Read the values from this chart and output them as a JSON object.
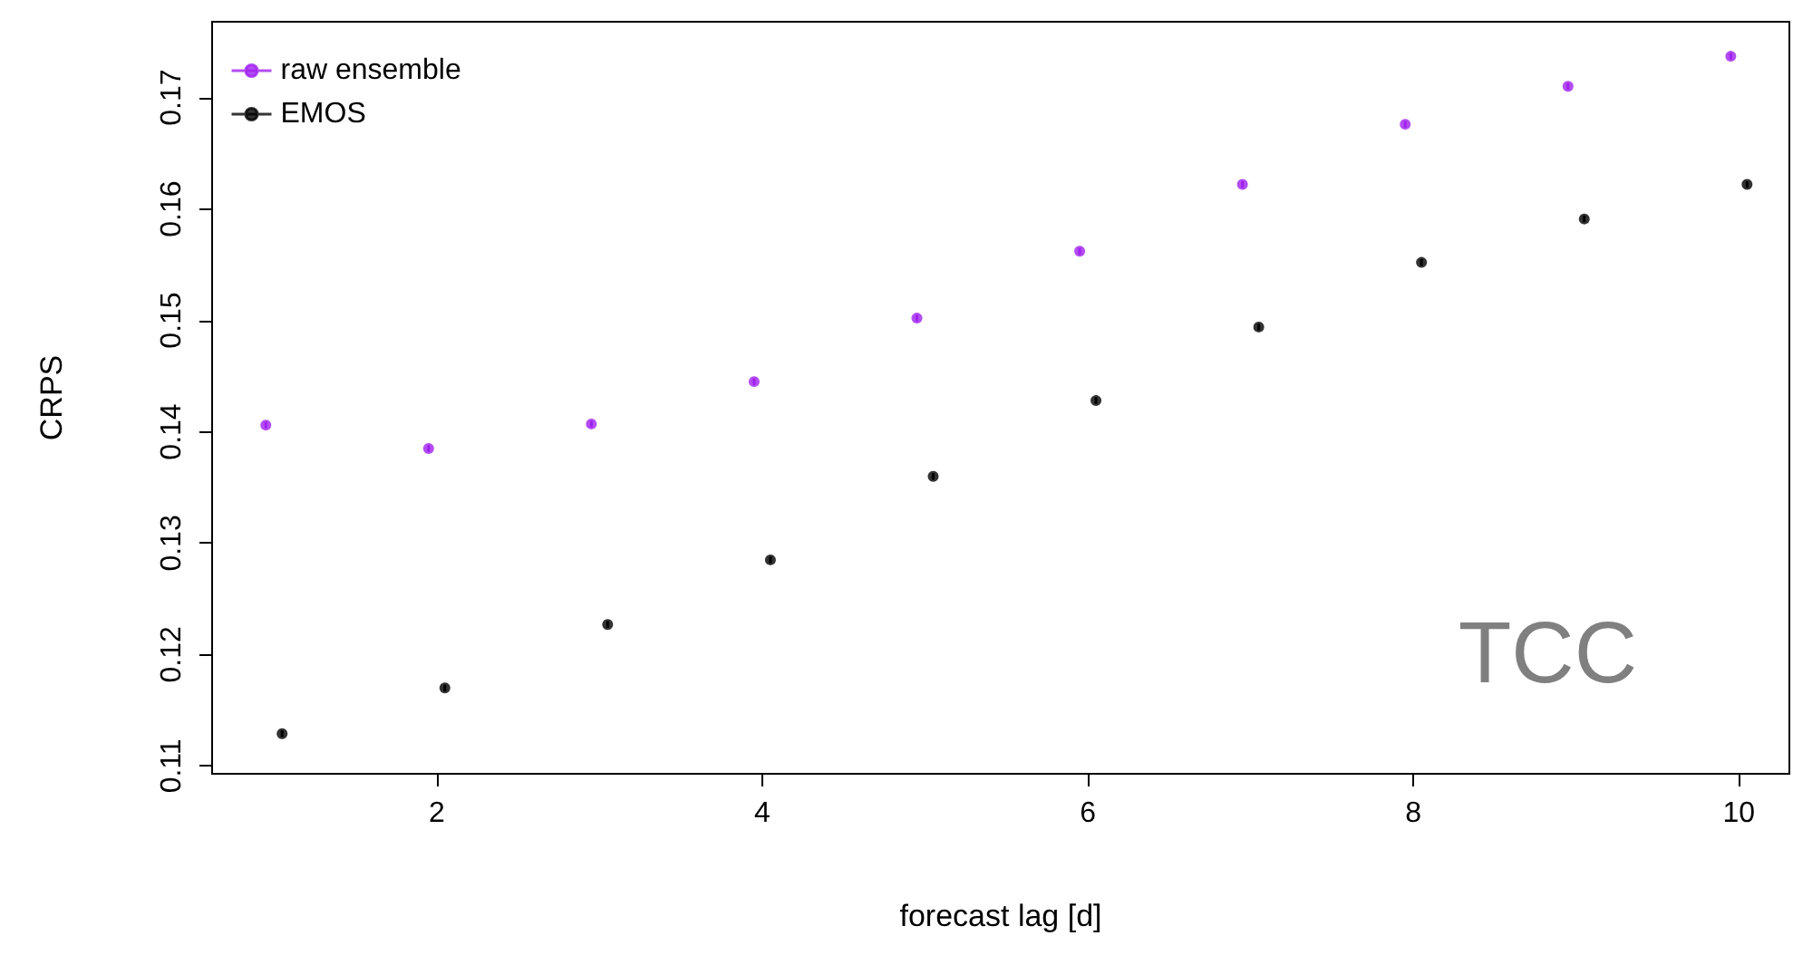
{
  "chart_data": {
    "type": "scatter",
    "xlabel": "forecast lag [d]",
    "ylabel": "CRPS",
    "annotations": [
      "TCC"
    ],
    "xlim": [
      0.62,
      10.31
    ],
    "xticks": [
      2,
      4,
      6,
      8,
      10
    ],
    "ylim": [
      0.1093,
      0.1768
    ],
    "yticks": [
      0.11,
      0.12,
      0.13,
      0.14,
      0.15,
      0.16,
      0.17
    ],
    "legend": "top left",
    "grid": false,
    "marker": "circle",
    "series": [
      {
        "name": "raw ensemble",
        "color": "#a020f0",
        "x": [
          0.95,
          1.95,
          2.95,
          3.95,
          4.95,
          5.95,
          6.95,
          7.95,
          8.95,
          9.95
        ],
        "values": [
          0.1406,
          0.1385,
          0.1407,
          0.1445,
          0.1502,
          0.1562,
          0.1622,
          0.1676,
          0.171,
          0.1737
        ],
        "errors": [
          0.0003,
          0.0003,
          0.0003,
          0.0003,
          0.0003,
          0.0003,
          0.0003,
          0.0003,
          0.0003,
          0.0003
        ]
      },
      {
        "name": "EMOS",
        "color": "#000000",
        "x": [
          1.05,
          2.05,
          3.05,
          4.05,
          5.05,
          6.05,
          7.05,
          8.05,
          9.05,
          10.05
        ],
        "values": [
          0.1129,
          0.117,
          0.1227,
          0.1285,
          0.136,
          0.1428,
          0.1494,
          0.1552,
          0.1591,
          0.1622
        ],
        "errors": [
          0.0003,
          0.0003,
          0.0003,
          0.0003,
          0.0003,
          0.0003,
          0.0003,
          0.0003,
          0.0003,
          0.0003
        ]
      }
    ]
  }
}
